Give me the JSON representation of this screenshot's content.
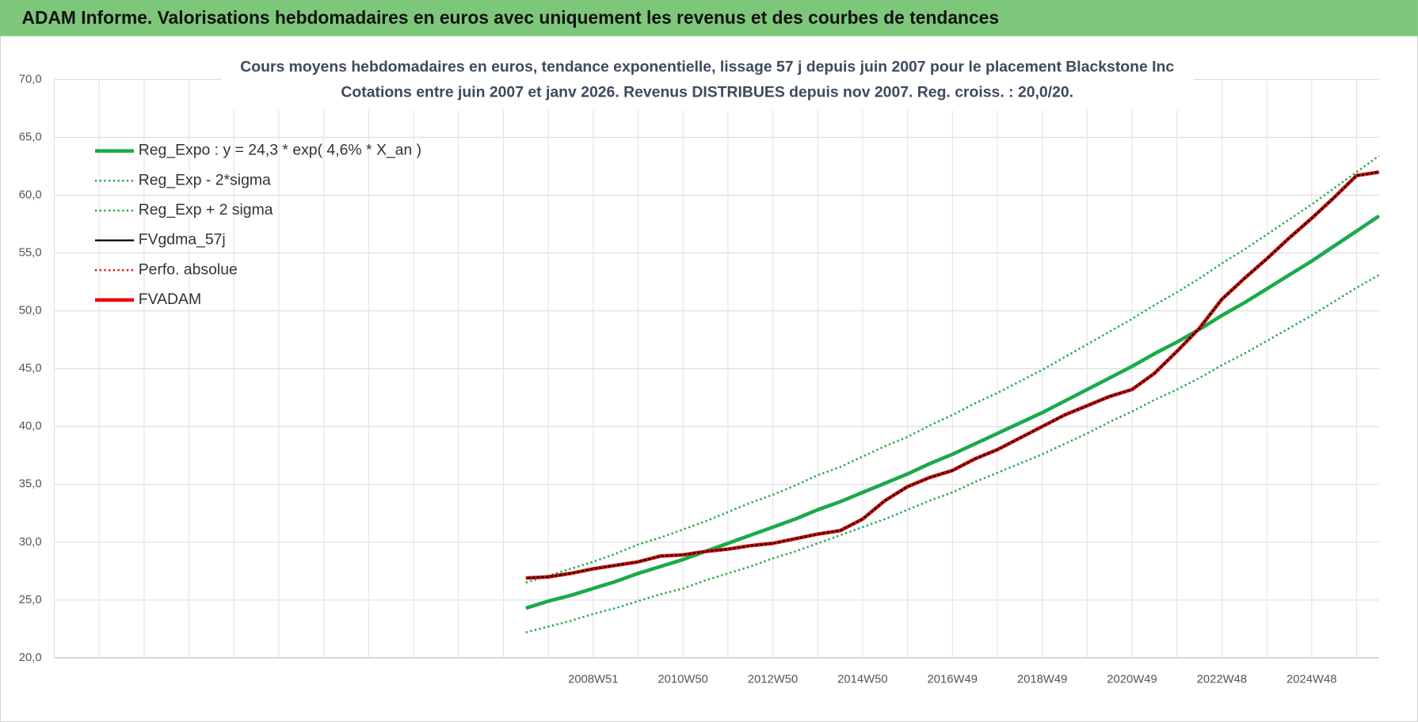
{
  "header": {
    "title": "ADAM Informe. Valorisations hebdomadaires en euros avec uniquement les revenus et des courbes de tendances"
  },
  "chart_data": {
    "type": "line",
    "title": "Cours moyens hebdomadaires en euros, tendance exponentielle, lissage 57 j depuis juin 2007 pour le placement Blackstone Inc",
    "subtitle": "Cotations entre juin 2007 et janv 2026. Revenus DISTRIBUES depuis nov 2007. Reg. croiss. : 20,0/20.",
    "categories": [
      null,
      null,
      null,
      null,
      null,
      null,
      null,
      null,
      null,
      null,
      null,
      null,
      null,
      null,
      null,
      null,
      null,
      null,
      null,
      null,
      null,
      null,
      null,
      null,
      "2008W51",
      null,
      null,
      null,
      "2010W50",
      null,
      null,
      null,
      "2012W50",
      null,
      null,
      null,
      "2014W50",
      null,
      null,
      null,
      "2016W49",
      null,
      null,
      null,
      "2018W49",
      null,
      null,
      null,
      "2020W49",
      null,
      null,
      null,
      "2022W48",
      null,
      null,
      null,
      "2024W48",
      null,
      null,
      null
    ],
    "ylim": [
      20,
      70
    ],
    "yticks": [
      {
        "value": 20,
        "label": "20,0"
      },
      {
        "value": 25,
        "label": "25,0"
      },
      {
        "value": 30,
        "label": "30,0"
      },
      {
        "value": 35,
        "label": "35,0"
      },
      {
        "value": 40,
        "label": "40,0"
      },
      {
        "value": 45,
        "label": "45,0"
      },
      {
        "value": 50,
        "label": "50,0"
      },
      {
        "value": 55,
        "label": "55,0"
      },
      {
        "value": 60,
        "label": "60,0"
      },
      {
        "value": 65,
        "label": "65,0"
      },
      {
        "value": 70,
        "label": "70,0"
      }
    ],
    "grid": true,
    "legend": "top-left",
    "series": [
      {
        "name": "Reg_Expo : y = 24,3 * exp( 4,6% *  X_an )",
        "color": "#1aaa4a",
        "line_style": "solid",
        "values": [
          null,
          null,
          null,
          null,
          null,
          null,
          null,
          null,
          null,
          null,
          null,
          null,
          null,
          null,
          null,
          null,
          null,
          null,
          null,
          null,
          null,
          24.3,
          24.9,
          25.4,
          26.0,
          26.6,
          27.3,
          27.9,
          28.5,
          29.2,
          29.9,
          30.6,
          31.3,
          32.0,
          32.8,
          33.5,
          34.3,
          35.1,
          35.9,
          36.8,
          37.6,
          38.5,
          39.4,
          40.3,
          41.2,
          42.2,
          43.2,
          44.2,
          45.2,
          46.3,
          47.3,
          48.4,
          49.6,
          50.7,
          51.9,
          53.1,
          54.3,
          55.6,
          56.9,
          58.2
        ]
      },
      {
        "name": "Reg_Exp - 2*sigma",
        "color": "#1aaa4a",
        "line_style": "dotted",
        "values": [
          null,
          null,
          null,
          null,
          null,
          null,
          null,
          null,
          null,
          null,
          null,
          null,
          null,
          null,
          null,
          null,
          null,
          null,
          null,
          null,
          null,
          22.2,
          22.7,
          23.2,
          23.8,
          24.3,
          24.9,
          25.5,
          26.0,
          26.7,
          27.3,
          27.9,
          28.6,
          29.2,
          29.9,
          30.6,
          31.3,
          32.0,
          32.8,
          33.6,
          34.3,
          35.2,
          36.0,
          36.8,
          37.6,
          38.5,
          39.4,
          40.4,
          41.3,
          42.3,
          43.2,
          44.2,
          45.3,
          46.3,
          47.4,
          48.5,
          49.6,
          50.8,
          52.0,
          53.1
        ]
      },
      {
        "name": "Reg_Exp + 2 sigma",
        "color": "#1aaa4a",
        "line_style": "dotted",
        "values": [
          null,
          null,
          null,
          null,
          null,
          null,
          null,
          null,
          null,
          null,
          null,
          null,
          null,
          null,
          null,
          null,
          null,
          null,
          null,
          null,
          null,
          26.5,
          27.1,
          27.7,
          28.3,
          29.0,
          29.8,
          30.4,
          31.1,
          31.8,
          32.6,
          33.4,
          34.1,
          34.9,
          35.8,
          36.5,
          37.4,
          38.3,
          39.1,
          40.1,
          41.0,
          42.0,
          42.9,
          43.9,
          44.9,
          46.0,
          47.1,
          48.2,
          49.3,
          50.5,
          51.6,
          52.8,
          54.1,
          55.3,
          56.6,
          57.9,
          59.2,
          60.6,
          62.0,
          63.4
        ]
      },
      {
        "name": "FVgdma_57j",
        "color": "#000000",
        "line_style": "solid",
        "values": [
          null,
          null,
          null,
          null,
          null,
          null,
          null,
          null,
          null,
          null,
          null,
          null,
          null,
          null,
          null,
          null,
          null,
          null,
          null,
          null,
          null,
          26.9,
          27.0,
          27.3,
          27.7,
          28.0,
          28.3,
          28.8,
          28.9,
          29.2,
          29.4,
          29.7,
          29.9,
          30.3,
          30.7,
          31.0,
          32.0,
          33.6,
          34.8,
          35.6,
          36.2,
          37.2,
          38.0,
          39.0,
          40.0,
          41.0,
          41.8,
          42.6,
          43.2,
          44.6,
          46.5,
          48.5,
          51.0,
          52.8,
          54.5,
          56.3,
          58.0,
          59.8,
          61.7,
          62.0
        ]
      },
      {
        "name": "Perfo. absolue",
        "color": "#e01010",
        "line_style": "dotted",
        "values": [
          null,
          null,
          null,
          null,
          null,
          null,
          null,
          null,
          null,
          null,
          null,
          null,
          null,
          null,
          null,
          null,
          null,
          null,
          null,
          null,
          null,
          26.9,
          27.0,
          27.3,
          27.7,
          28.0,
          28.3,
          28.8,
          28.9,
          29.2,
          29.4,
          29.7,
          29.9,
          30.3,
          30.7,
          31.0,
          32.0,
          33.6,
          34.8,
          35.6,
          36.2,
          37.2,
          38.0,
          39.0,
          40.0,
          41.0,
          41.8,
          42.6,
          43.2,
          44.6,
          46.5,
          48.5,
          51.0,
          52.8,
          54.5,
          56.3,
          58.0,
          59.8,
          61.7,
          62.0
        ]
      },
      {
        "name": "FVADAM",
        "color": "#e01010",
        "line_style": "solid",
        "values": [
          null,
          null,
          null,
          null,
          null,
          null,
          null,
          null,
          null,
          null,
          null,
          null,
          null,
          null,
          null,
          null,
          null,
          null,
          null,
          null,
          null,
          26.9,
          27.0,
          27.3,
          27.7,
          28.0,
          28.3,
          28.8,
          28.9,
          29.2,
          29.4,
          29.7,
          29.9,
          30.3,
          30.7,
          31.0,
          32.0,
          33.6,
          34.8,
          35.6,
          36.2,
          37.2,
          38.0,
          39.0,
          40.0,
          41.0,
          41.8,
          42.6,
          43.2,
          44.6,
          46.5,
          48.5,
          51.0,
          52.8,
          54.5,
          56.3,
          58.0,
          59.8,
          61.7,
          62.0
        ]
      }
    ]
  }
}
